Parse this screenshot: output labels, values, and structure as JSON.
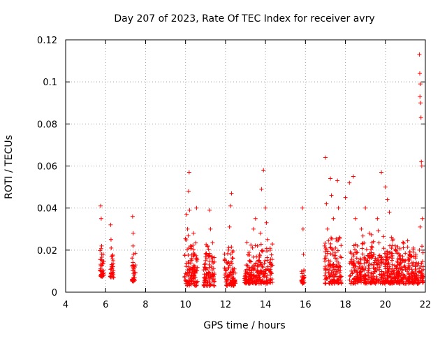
{
  "chart_data": {
    "type": "scatter",
    "title": "Day 207 of 2023, Rate Of TEC Index for receiver avry",
    "xlabel": "GPS time / hours",
    "ylabel": "ROTI / TECUs",
    "xlim": [
      4,
      22
    ],
    "ylim": [
      0,
      0.12
    ],
    "x_ticks": [
      4,
      6,
      8,
      10,
      12,
      14,
      16,
      18,
      20,
      22
    ],
    "x_tick_labels": [
      "4",
      "6",
      "8",
      "10",
      "12",
      "14",
      "16",
      "18",
      "20",
      "22"
    ],
    "y_ticks": [
      0,
      0.02,
      0.04,
      0.06,
      0.08,
      0.1,
      0.12
    ],
    "y_tick_labels": [
      "0",
      "0.02",
      "0.04",
      "0.06",
      "0.08",
      "0.1",
      "0.12"
    ],
    "grid": true,
    "marker": "plus",
    "color": "#ff0000",
    "points": [
      [
        5.75,
        0.041
      ],
      [
        5.78,
        0.035
      ],
      [
        5.8,
        0.022
      ],
      [
        5.82,
        0.015
      ],
      [
        5.85,
        0.01
      ],
      [
        5.88,
        0.018
      ],
      [
        5.76,
        0.008
      ],
      [
        6.25,
        0.032
      ],
      [
        6.28,
        0.021
      ],
      [
        6.32,
        0.013
      ],
      [
        6.35,
        0.009
      ],
      [
        6.3,
        0.017
      ],
      [
        6.27,
        0.025
      ],
      [
        7.35,
        0.036
      ],
      [
        7.38,
        0.028
      ],
      [
        7.4,
        0.018
      ],
      [
        7.42,
        0.011
      ],
      [
        7.45,
        0.007
      ],
      [
        7.37,
        0.022
      ],
      [
        10.05,
        0.037
      ],
      [
        10.1,
        0.03
      ],
      [
        10.15,
        0.048
      ],
      [
        10.18,
        0.057
      ],
      [
        10.2,
        0.039
      ],
      [
        10.25,
        0.022
      ],
      [
        10.3,
        0.016
      ],
      [
        10.35,
        0.011
      ],
      [
        10.12,
        0.008
      ],
      [
        10.08,
        0.005
      ],
      [
        10.4,
        0.028
      ],
      [
        10.45,
        0.018
      ],
      [
        10.5,
        0.01
      ],
      [
        10.55,
        0.04
      ],
      [
        11.0,
        0.015
      ],
      [
        11.1,
        0.022
      ],
      [
        11.2,
        0.039
      ],
      [
        11.25,
        0.03
      ],
      [
        11.3,
        0.012
      ],
      [
        11.15,
        0.008
      ],
      [
        11.05,
        0.018
      ],
      [
        12.05,
        0.014
      ],
      [
        12.15,
        0.02
      ],
      [
        12.2,
        0.031
      ],
      [
        12.25,
        0.041
      ],
      [
        12.3,
        0.047
      ],
      [
        12.35,
        0.019
      ],
      [
        12.4,
        0.01
      ],
      [
        12.1,
        0.006
      ],
      [
        13.0,
        0.01
      ],
      [
        13.2,
        0.015
      ],
      [
        13.4,
        0.03
      ],
      [
        13.5,
        0.035
      ],
      [
        13.6,
        0.022
      ],
      [
        13.7,
        0.018
      ],
      [
        13.8,
        0.049
      ],
      [
        13.9,
        0.058
      ],
      [
        14.0,
        0.04
      ],
      [
        14.1,
        0.025
      ],
      [
        14.2,
        0.014
      ],
      [
        13.3,
        0.008
      ],
      [
        13.75,
        0.028
      ],
      [
        14.05,
        0.033
      ],
      [
        15.85,
        0.04
      ],
      [
        15.88,
        0.03
      ],
      [
        15.9,
        0.018
      ],
      [
        15.92,
        0.01
      ],
      [
        15.87,
        0.006
      ],
      [
        17.0,
        0.064
      ],
      [
        17.05,
        0.042
      ],
      [
        17.1,
        0.03
      ],
      [
        17.15,
        0.015
      ],
      [
        17.25,
        0.054
      ],
      [
        17.3,
        0.046
      ],
      [
        17.4,
        0.035
      ],
      [
        17.5,
        0.021
      ],
      [
        17.6,
        0.053
      ],
      [
        17.65,
        0.04
      ],
      [
        17.7,
        0.026
      ],
      [
        17.75,
        0.012
      ],
      [
        17.2,
        0.008
      ],
      [
        18.0,
        0.045
      ],
      [
        18.2,
        0.052
      ],
      [
        18.4,
        0.055
      ],
      [
        18.5,
        0.035
      ],
      [
        18.6,
        0.022
      ],
      [
        18.8,
        0.03
      ],
      [
        19.0,
        0.04
      ],
      [
        19.2,
        0.028
      ],
      [
        19.4,
        0.024
      ],
      [
        19.6,
        0.035
      ],
      [
        19.8,
        0.057
      ],
      [
        20.0,
        0.05
      ],
      [
        20.1,
        0.044
      ],
      [
        20.2,
        0.038
      ],
      [
        20.3,
        0.026
      ],
      [
        20.5,
        0.02
      ],
      [
        20.7,
        0.016
      ],
      [
        21.0,
        0.015
      ],
      [
        21.2,
        0.012
      ],
      [
        21.4,
        0.021
      ],
      [
        18.3,
        0.01
      ],
      [
        18.7,
        0.012
      ],
      [
        19.1,
        0.015
      ],
      [
        19.5,
        0.011
      ],
      [
        19.9,
        0.014
      ],
      [
        20.4,
        0.01
      ],
      [
        20.8,
        0.009
      ],
      [
        21.1,
        0.011
      ],
      [
        21.3,
        0.008
      ],
      [
        21.5,
        0.01
      ],
      [
        21.7,
        0.113
      ],
      [
        21.72,
        0.104
      ],
      [
        21.75,
        0.099
      ],
      [
        21.73,
        0.093
      ],
      [
        21.76,
        0.09
      ],
      [
        21.78,
        0.083
      ],
      [
        21.8,
        0.062
      ],
      [
        21.82,
        0.06
      ],
      [
        21.85,
        0.035
      ],
      [
        21.74,
        0.031
      ],
      [
        21.7,
        0.02
      ],
      [
        21.77,
        0.012
      ]
    ],
    "dense_bands": [
      {
        "x": [
          5.72,
          5.92
        ],
        "y": [
          0.007,
          0.024
        ]
      },
      {
        "x": [
          6.22,
          6.4
        ],
        "y": [
          0.007,
          0.022
        ]
      },
      {
        "x": [
          7.3,
          7.5
        ],
        "y": [
          0.005,
          0.024
        ]
      },
      {
        "x": [
          9.95,
          10.6
        ],
        "y": [
          0.003,
          0.03
        ]
      },
      {
        "x": [
          10.9,
          11.45
        ],
        "y": [
          0.003,
          0.026
        ]
      },
      {
        "x": [
          11.95,
          12.5
        ],
        "y": [
          0.003,
          0.026
        ]
      },
      {
        "x": [
          12.95,
          14.35
        ],
        "y": [
          0.004,
          0.025
        ]
      },
      {
        "x": [
          15.8,
          15.95
        ],
        "y": [
          0.004,
          0.015
        ]
      },
      {
        "x": [
          16.95,
          17.8
        ],
        "y": [
          0.004,
          0.03
        ]
      },
      {
        "x": [
          18.2,
          21.9
        ],
        "y": [
          0.004,
          0.03
        ]
      }
    ]
  }
}
